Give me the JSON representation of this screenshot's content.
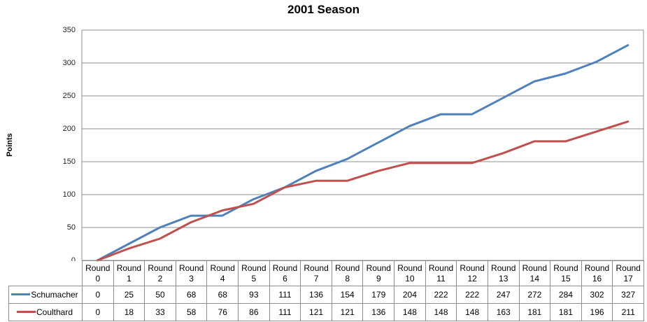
{
  "chart_data": {
    "type": "line",
    "title": "2001 Season",
    "ylabel": "Points",
    "xlabel": "",
    "ylim": [
      0,
      350
    ],
    "ytick_step": 50,
    "yticks": [
      0,
      50,
      100,
      150,
      200,
      250,
      300,
      350
    ],
    "grid": true,
    "legend_position": "data-table-left",
    "categories": [
      "Round 0",
      "Round 1",
      "Round 2",
      "Round 3",
      "Round 4",
      "Round 5",
      "Round 6",
      "Round 7",
      "Round 8",
      "Round 9",
      "Round 10",
      "Round 11",
      "Round 12",
      "Round 13",
      "Round 14",
      "Round 15",
      "Round 16",
      "Round 17"
    ],
    "series": [
      {
        "name": "Schumacher",
        "color": "#4F81BD",
        "values": [
          0,
          25,
          50,
          68,
          68,
          93,
          111,
          136,
          154,
          179,
          204,
          222,
          222,
          247,
          272,
          284,
          302,
          327
        ]
      },
      {
        "name": "Coulthard",
        "color": "#C0504D",
        "values": [
          0,
          18,
          33,
          58,
          76,
          86,
          111,
          121,
          121,
          136,
          148,
          148,
          148,
          163,
          181,
          181,
          196,
          211
        ]
      }
    ]
  },
  "colors": {
    "gridline": "#8e8e8e",
    "plot_border": "#8e8e8e",
    "table_border": "#8e8e8e",
    "title_text": "#000000",
    "tick_text": "#1f1f1f",
    "table_text": "#000000",
    "background": "#ffffff"
  }
}
